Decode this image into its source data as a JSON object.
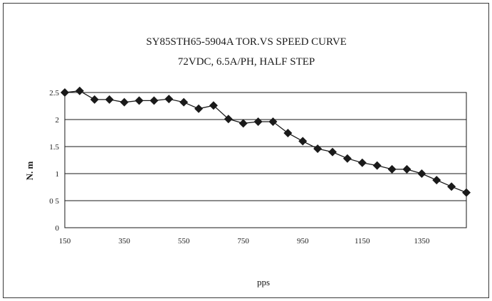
{
  "chart_data": {
    "type": "line",
    "title": "SY85STH65-5904A TOR.VS SPEED CURVE",
    "subtitle": "72VDC, 6.5A/PH, HALF STEP",
    "xlabel": "pps",
    "ylabel": "N. m",
    "xlim": [
      150,
      1500
    ],
    "ylim": [
      0,
      2.5
    ],
    "x_ticks": [
      150,
      350,
      550,
      750,
      950,
      1150,
      1350
    ],
    "x_tick_labels": [
      "150",
      "350",
      "550",
      "750",
      "950",
      "1150",
      "1350"
    ],
    "y_ticks": [
      0,
      0.5,
      1,
      1.5,
      2,
      2.5
    ],
    "y_tick_labels": [
      "0",
      "0 5",
      "1",
      "1.5",
      "2",
      "2.5"
    ],
    "grid": "horizontal",
    "legend": "none",
    "marker": "diamond",
    "series": [
      {
        "color": "#1a1a1a",
        "x": [
          150,
          200,
          250,
          300,
          350,
          400,
          450,
          500,
          550,
          600,
          650,
          700,
          750,
          800,
          850,
          900,
          950,
          1000,
          1050,
          1100,
          1150,
          1200,
          1250,
          1300,
          1350,
          1400,
          1450,
          1500
        ],
        "y": [
          2.5,
          2.53,
          2.37,
          2.37,
          2.32,
          2.35,
          2.35,
          2.38,
          2.32,
          2.2,
          2.26,
          2.01,
          1.93,
          1.96,
          1.96,
          1.75,
          1.6,
          1.46,
          1.4,
          1.28,
          1.2,
          1.15,
          1.08,
          1.08,
          1.0,
          0.88,
          0.76,
          0.65
        ]
      }
    ]
  }
}
